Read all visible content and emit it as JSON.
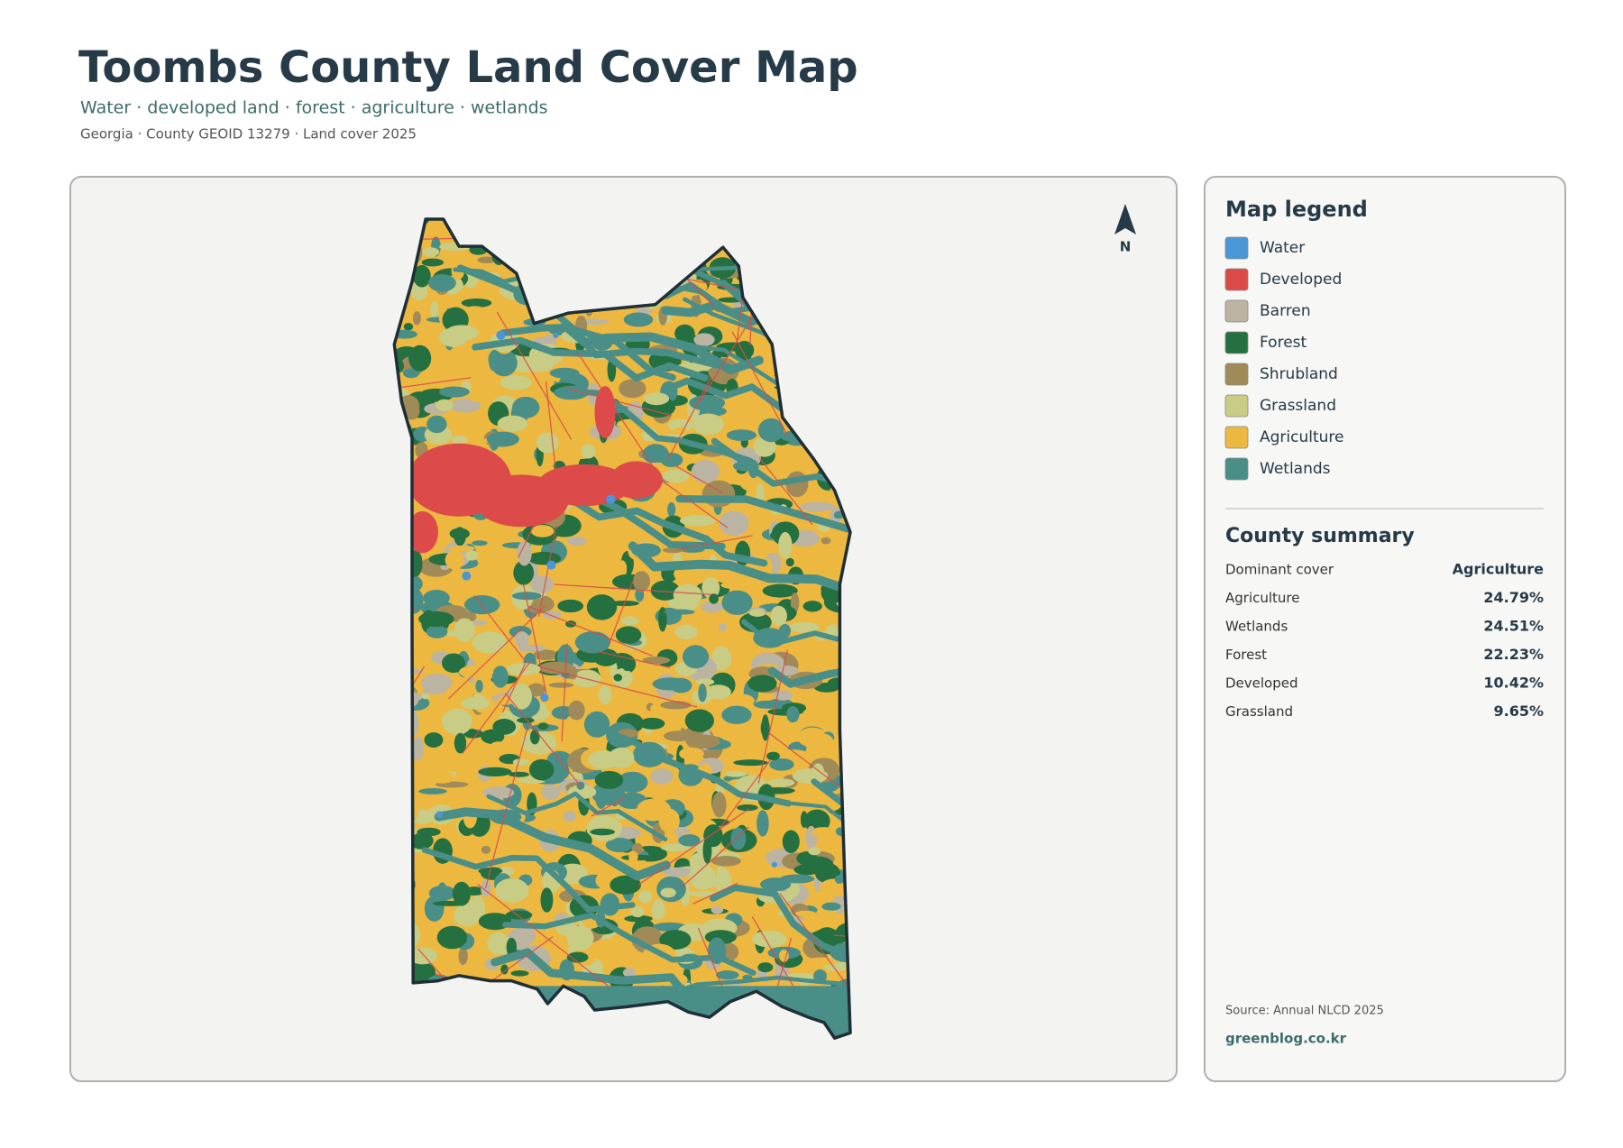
{
  "header": {
    "title": "Toombs County Land Cover Map",
    "subtitle": "Water · developed land · forest · agriculture · wetlands",
    "meta": "Georgia · County GEOID 13279 · Land cover 2025"
  },
  "map": {
    "north": "N"
  },
  "legend": {
    "title": "Map legend",
    "items": [
      {
        "label": "Water",
        "color": "#4a96d6"
      },
      {
        "label": "Developed",
        "color": "#dc4a4a"
      },
      {
        "label": "Barren",
        "color": "#bcb4a2"
      },
      {
        "label": "Forest",
        "color": "#257040"
      },
      {
        "label": "Shrubland",
        "color": "#a08a58"
      },
      {
        "label": "Grassland",
        "color": "#c8cc84"
      },
      {
        "label": "Agriculture",
        "color": "#ecb840"
      },
      {
        "label": "Wetlands",
        "color": "#4a8e88"
      }
    ]
  },
  "summary": {
    "title": "County summary",
    "rows": [
      {
        "label": "Dominant cover",
        "value": "Agriculture"
      },
      {
        "label": "Agriculture",
        "value": "24.79%"
      },
      {
        "label": "Wetlands",
        "value": "24.51%"
      },
      {
        "label": "Forest",
        "value": "22.23%"
      },
      {
        "label": "Developed",
        "value": "10.42%"
      },
      {
        "label": "Grassland",
        "value": "9.65%"
      }
    ]
  },
  "footer": {
    "source": "Source: Annual NLCD 2025",
    "site": "greenblog.co.kr"
  }
}
